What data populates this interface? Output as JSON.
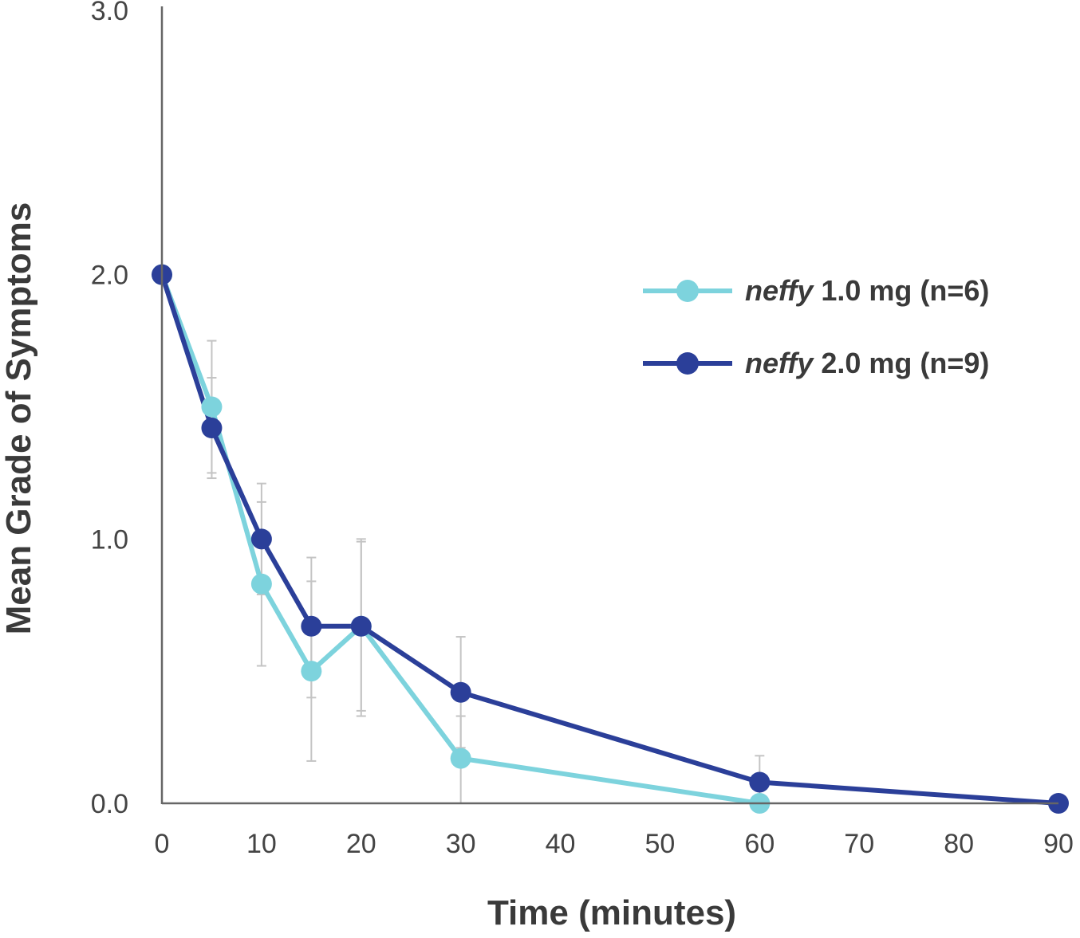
{
  "chart_data": {
    "type": "line",
    "xlabel": "Time (minutes)",
    "ylabel": "Mean Grade of Symptoms",
    "xlim": [
      0,
      90
    ],
    "ylim": [
      0,
      3
    ],
    "x_ticks": [
      "0",
      "10",
      "20",
      "30",
      "40",
      "50",
      "60",
      "70",
      "80",
      "90"
    ],
    "y_ticks": [
      "0.0",
      "1.0",
      "2.0",
      "3.0"
    ],
    "grid": false,
    "legend_position": "right",
    "series": [
      {
        "name": "neffy 1.0 mg (n=6)",
        "name_italic": "neffy",
        "name_rest": " 1.0 mg (n=6)",
        "color": "#7dd3dd",
        "x": [
          0,
          5,
          10,
          15,
          20,
          30,
          60
        ],
        "y": [
          2.0,
          1.5,
          0.83,
          0.5,
          0.67,
          0.17,
          0.0
        ],
        "error_low": [
          null,
          1.25,
          0.52,
          0.16,
          0.33,
          0.0,
          null
        ],
        "error_high": [
          null,
          1.75,
          1.14,
          0.84,
          1.0,
          0.33,
          null
        ]
      },
      {
        "name": "neffy 2.0 mg (n=9)",
        "name_italic": "neffy",
        "name_rest": " 2.0 mg (n=9)",
        "color": "#2b3f99",
        "x": [
          0,
          5,
          10,
          15,
          20,
          30,
          60,
          90
        ],
        "y": [
          2.0,
          1.42,
          1.0,
          0.67,
          0.67,
          0.42,
          0.08,
          0.0
        ],
        "error_low": [
          null,
          1.23,
          0.79,
          0.4,
          0.35,
          0.21,
          0.0,
          null
        ],
        "error_high": [
          null,
          1.61,
          1.21,
          0.93,
          0.99,
          0.63,
          0.18,
          null
        ]
      }
    ]
  }
}
